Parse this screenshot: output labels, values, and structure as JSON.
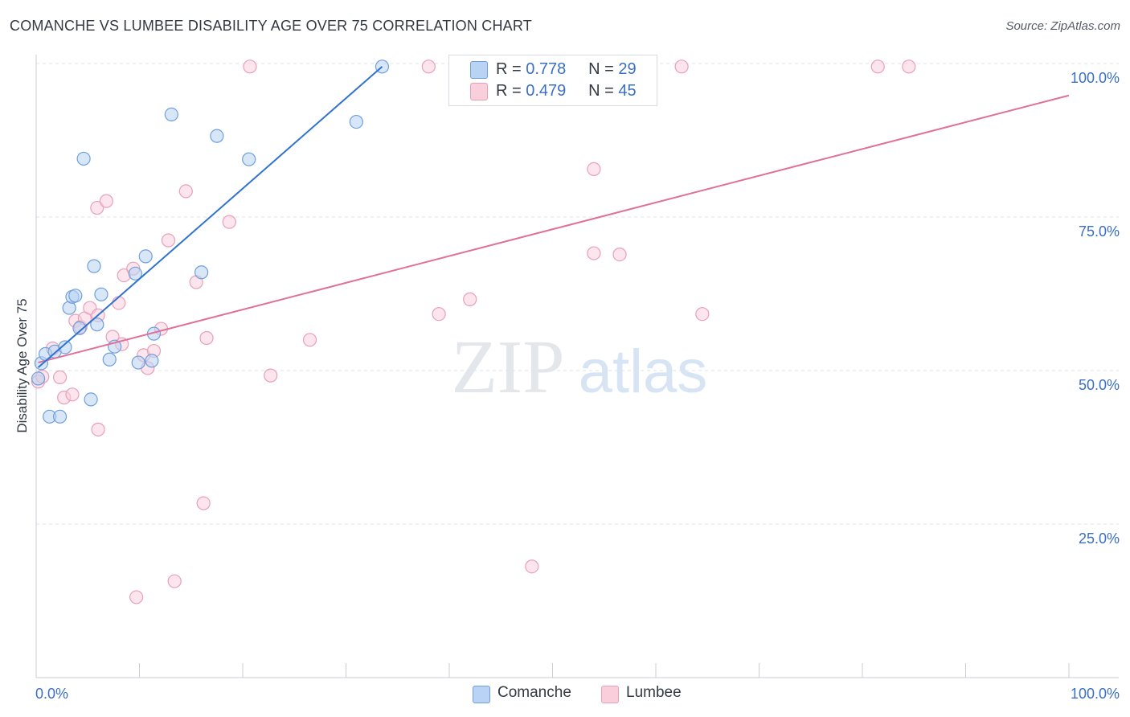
{
  "header": {
    "title": "COMANCHE VS LUMBEE DISABILITY AGE OVER 75 CORRELATION CHART",
    "source": "Source: ZipAtlas.com"
  },
  "watermark": {
    "zip": "ZIP",
    "atlas": "atlas"
  },
  "legend_top": {
    "rows": [
      {
        "r_label": "R =",
        "r_value": "0.778",
        "n_label": "N =",
        "n_value": "29"
      },
      {
        "r_label": "R =",
        "r_value": "0.479",
        "n_label": "N =",
        "n_value": "45"
      }
    ]
  },
  "legend_bottom": {
    "items": [
      "Comanche",
      "Lumbee"
    ]
  },
  "colors": {
    "comanche_fill": "#b8d3f3",
    "comanche_stroke": "#6f9fdc",
    "comanche_line": "#2f72d0",
    "lumbee_fill": "#f9cfdc",
    "lumbee_stroke": "#e8a0b8",
    "lumbee_line": "#e07098",
    "grid": "#dfe3e8",
    "axis_text": "#3a6fc6"
  },
  "chart_data": {
    "type": "scatter",
    "title": "COMANCHE VS LUMBEE DISABILITY AGE OVER 75 CORRELATION CHART",
    "xlabel": "",
    "ylabel": "Disability Age Over 75",
    "xlim": [
      0,
      100
    ],
    "ylim": [
      0,
      100
    ],
    "x_tick_labels": [
      "0.0%",
      "100.0%"
    ],
    "y_tick_labels": [
      "25.0%",
      "50.0%",
      "75.0%",
      "100.0%"
    ],
    "y_ticks": [
      25,
      50,
      75,
      100
    ],
    "grid": true,
    "legend_position": "top-center",
    "series": [
      {
        "name": "Comanche",
        "r": 0.778,
        "n": 29,
        "points": [
          [
            0.5,
            51.2
          ],
          [
            0.9,
            52.7
          ],
          [
            1.3,
            42.5
          ],
          [
            1.8,
            53.1
          ],
          [
            2.3,
            42.5
          ],
          [
            2.8,
            53.8
          ],
          [
            3.2,
            60.2
          ],
          [
            3.5,
            62.0
          ],
          [
            3.8,
            62.2
          ],
          [
            4.2,
            56.9
          ],
          [
            4.6,
            84.5
          ],
          [
            5.3,
            45.3
          ],
          [
            5.6,
            67.0
          ],
          [
            5.9,
            57.5
          ],
          [
            6.3,
            62.4
          ],
          [
            7.1,
            51.8
          ],
          [
            7.6,
            53.9
          ],
          [
            9.6,
            65.8
          ],
          [
            9.9,
            51.3
          ],
          [
            10.6,
            68.6
          ],
          [
            11.2,
            51.6
          ],
          [
            11.4,
            56.0
          ],
          [
            13.1,
            91.7
          ],
          [
            17.5,
            88.2
          ],
          [
            16.0,
            66.0
          ],
          [
            20.6,
            84.4
          ],
          [
            31.0,
            90.5
          ],
          [
            33.5,
            99.5
          ],
          [
            0.2,
            48.7
          ]
        ],
        "trend": {
          "x": [
            0.2,
            33.5
          ],
          "y": [
            50.5,
            99.5
          ]
        }
      },
      {
        "name": "Lumbee",
        "r": 0.479,
        "n": 45,
        "points": [
          [
            0.2,
            48.2
          ],
          [
            0.6,
            49.0
          ],
          [
            1.6,
            53.6
          ],
          [
            2.3,
            48.9
          ],
          [
            2.7,
            45.6
          ],
          [
            3.5,
            46.1
          ],
          [
            3.8,
            58.1
          ],
          [
            4.3,
            57.1
          ],
          [
            4.7,
            58.5
          ],
          [
            5.2,
            60.2
          ],
          [
            5.9,
            76.5
          ],
          [
            6.0,
            40.4
          ],
          [
            6.8,
            77.6
          ],
          [
            7.4,
            55.5
          ],
          [
            8.3,
            54.3
          ],
          [
            8.5,
            65.5
          ],
          [
            9.4,
            66.6
          ],
          [
            9.7,
            13.1
          ],
          [
            10.4,
            52.5
          ],
          [
            10.8,
            50.4
          ],
          [
            11.4,
            53.2
          ],
          [
            12.1,
            56.8
          ],
          [
            12.8,
            71.2
          ],
          [
            13.4,
            15.7
          ],
          [
            14.5,
            79.2
          ],
          [
            15.5,
            64.4
          ],
          [
            16.2,
            28.4
          ],
          [
            16.5,
            55.3
          ],
          [
            18.7,
            74.2
          ],
          [
            20.7,
            99.5
          ],
          [
            22.7,
            49.2
          ],
          [
            26.5,
            55.0
          ],
          [
            38.0,
            99.5
          ],
          [
            39.0,
            59.2
          ],
          [
            42.0,
            61.6
          ],
          [
            48.0,
            18.1
          ],
          [
            54.0,
            82.8
          ],
          [
            54.0,
            69.1
          ],
          [
            56.5,
            68.9
          ],
          [
            62.5,
            99.5
          ],
          [
            64.5,
            59.2
          ],
          [
            81.5,
            99.5
          ],
          [
            84.5,
            99.5
          ],
          [
            8.0,
            61.0
          ],
          [
            6.0,
            59.0
          ]
        ],
        "trend": {
          "x": [
            0.2,
            100
          ],
          "y": [
            51.3,
            94.8
          ]
        }
      }
    ]
  }
}
